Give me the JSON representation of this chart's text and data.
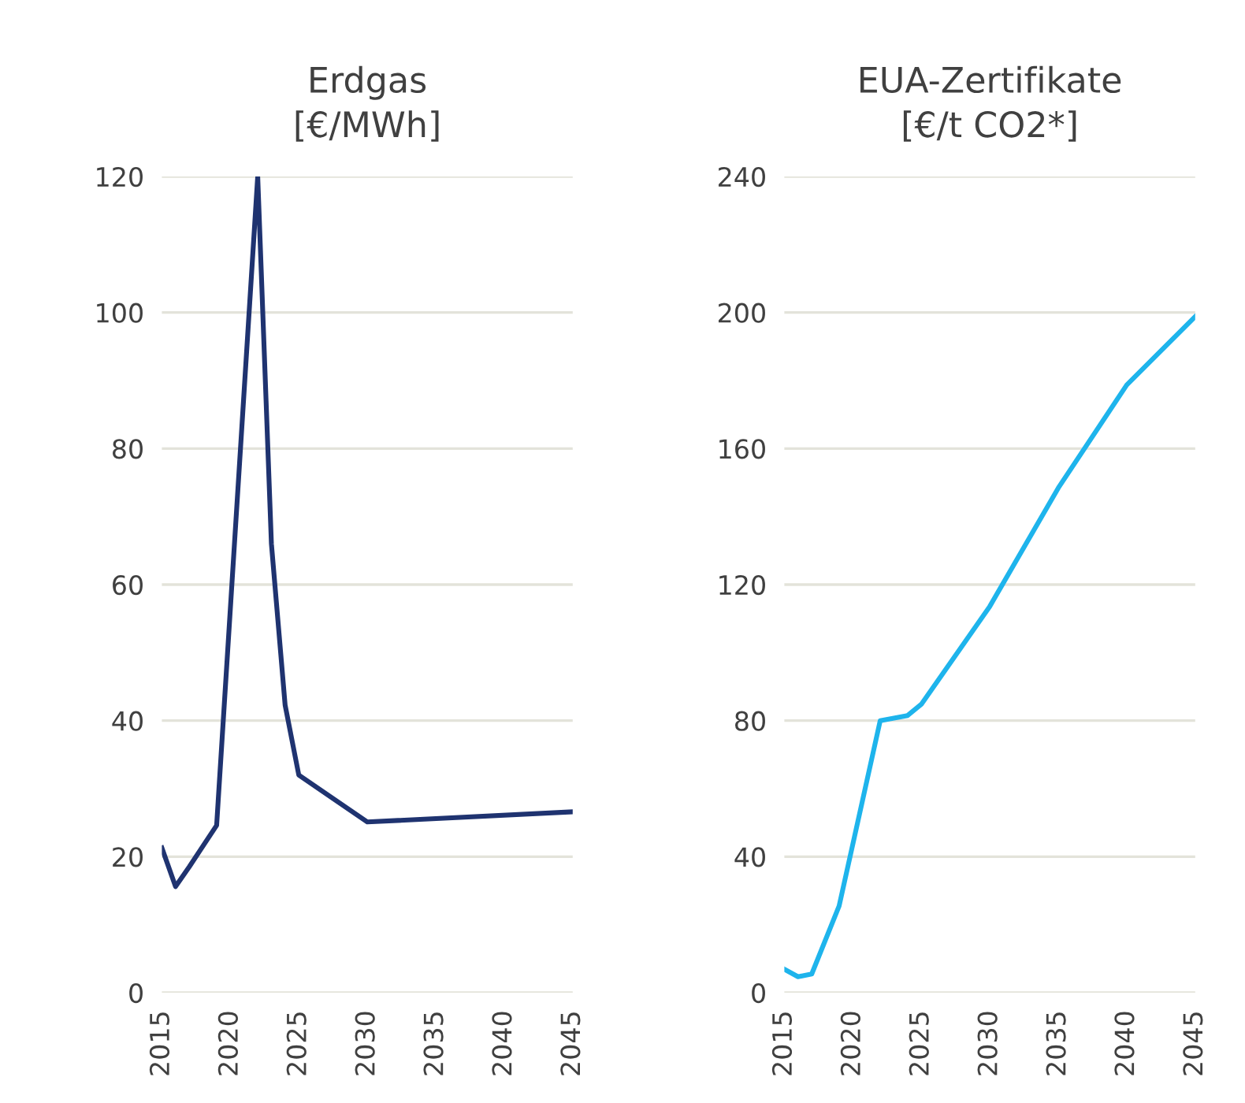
{
  "chart_data": [
    {
      "type": "line",
      "title": "Erdgas\n[€/MWh]",
      "x": [
        2015,
        2016,
        2017,
        2019,
        2022,
        2023,
        2024,
        2025,
        2030,
        2045
      ],
      "series": [
        {
          "color": "#1f3370",
          "values": [
            21.3,
            15.6,
            18.5,
            24.6,
            120,
            66,
            42.3,
            32,
            25.1,
            26.6
          ]
        }
      ],
      "xlim": [
        2015,
        2045
      ],
      "xticks": [
        2015,
        2020,
        2025,
        2030,
        2035,
        2040,
        2045
      ],
      "ylim": [
        0,
        120
      ],
      "yticks": [
        0,
        20,
        40,
        60,
        80,
        100,
        120
      ],
      "grid": "y",
      "legend": false
    },
    {
      "type": "line",
      "title": "EUA-Zertifikate\n[€/t CO2*]",
      "x": [
        2015,
        2016,
        2017,
        2019,
        2022,
        2024,
        2025,
        2030,
        2035,
        2040,
        2045
      ],
      "series": [
        {
          "color": "#1eb4ec",
          "values": [
            6.9,
            4.7,
            5.5,
            25.5,
            80,
            81.5,
            84.8,
            113.6,
            148.4,
            178.7,
            198.8
          ]
        }
      ],
      "xlim": [
        2015,
        2045
      ],
      "xticks": [
        2015,
        2020,
        2025,
        2030,
        2035,
        2040,
        2045
      ],
      "ylim": [
        0,
        240
      ],
      "yticks": [
        0,
        40,
        80,
        120,
        160,
        200,
        240
      ],
      "grid": "y",
      "legend": false
    }
  ]
}
